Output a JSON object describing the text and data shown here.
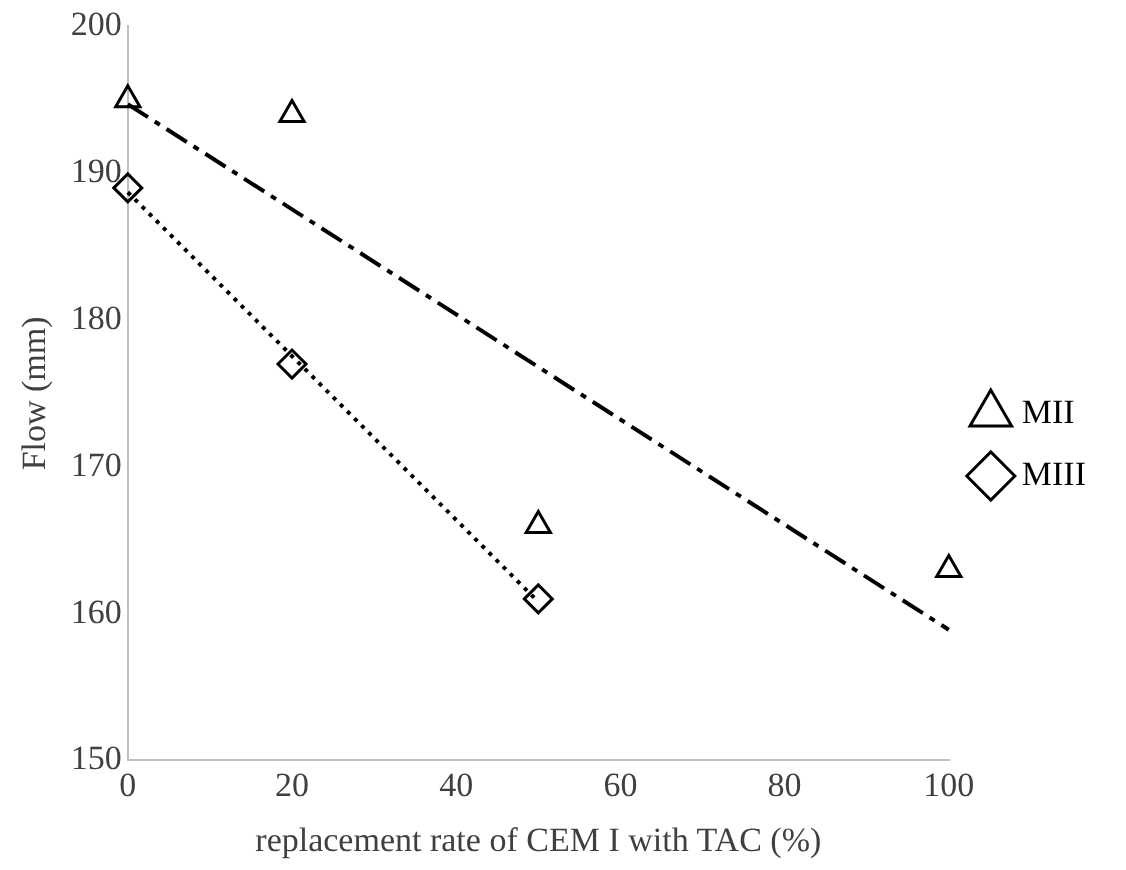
{
  "chart_data": {
    "type": "scatter",
    "xlabel": "replacement rate of CEM I with TAC (%)",
    "ylabel": "Flow (mm)",
    "xlim": [
      0,
      100
    ],
    "xticks": [
      0,
      20,
      40,
      60,
      80,
      100
    ],
    "ylim": [
      150,
      200
    ],
    "yticks": [
      150,
      160,
      170,
      180,
      190,
      200
    ],
    "grid": false,
    "legend": "right",
    "series": [
      {
        "name": "MII",
        "color": "#000000",
        "marker": "triangle",
        "x": [
          0,
          20,
          50,
          100
        ],
        "values": [
          195,
          194,
          166,
          163
        ]
      },
      {
        "name": "MIII",
        "color": "#000000",
        "marker": "diamond",
        "x": [
          0,
          20,
          50
        ],
        "values": [
          189,
          177,
          161
        ]
      },
      {
        "type": "line",
        "color": "#000000",
        "line_style": "dashed",
        "marker": "none",
        "x": [
          0,
          100
        ],
        "values": [
          194.7,
          158.9
        ]
      },
      {
        "type": "line",
        "color": "#000000",
        "line_style": "dotted",
        "marker": "none",
        "x": [
          0,
          50
        ],
        "values": [
          188.7,
          160.8
        ]
      }
    ]
  }
}
